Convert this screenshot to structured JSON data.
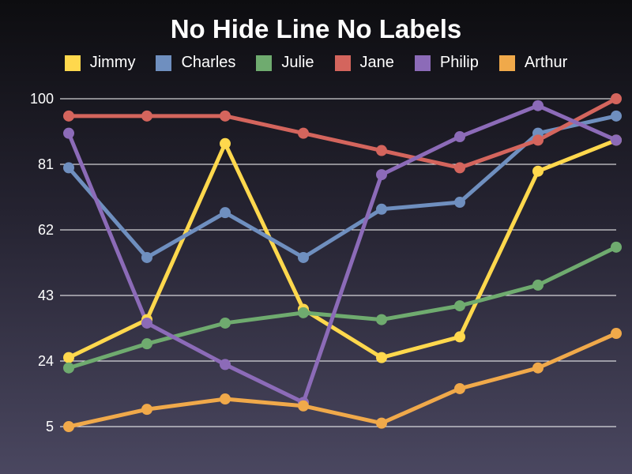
{
  "chart_data": {
    "type": "line",
    "title": "No Hide Line No Labels",
    "xlabel": "",
    "ylabel": "",
    "ylim": [
      5,
      100
    ],
    "yticks": [
      5,
      24,
      43,
      62,
      81,
      100
    ],
    "grid": true,
    "legend_position": "top",
    "series": [
      {
        "name": "Jimmy",
        "color": "#ffd84d",
        "values": [
          25,
          36,
          87,
          39,
          25,
          31,
          79,
          88
        ]
      },
      {
        "name": "Charles",
        "color": "#6f8fbf",
        "values": [
          80,
          54,
          67,
          54,
          68,
          70,
          90,
          95
        ]
      },
      {
        "name": "Julie",
        "color": "#6fab6f",
        "values": [
          22,
          29,
          35,
          38,
          36,
          40,
          46,
          57
        ]
      },
      {
        "name": "Jane",
        "color": "#d4655d",
        "values": [
          95,
          95,
          95,
          90,
          85,
          80,
          88,
          100
        ]
      },
      {
        "name": "Philip",
        "color": "#8c6bb8",
        "values": [
          90,
          35,
          23,
          12,
          78,
          89,
          98,
          88
        ]
      },
      {
        "name": "Arthur",
        "color": "#f0a94a",
        "values": [
          5,
          10,
          13,
          11,
          6,
          16,
          22,
          32
        ]
      }
    ]
  }
}
